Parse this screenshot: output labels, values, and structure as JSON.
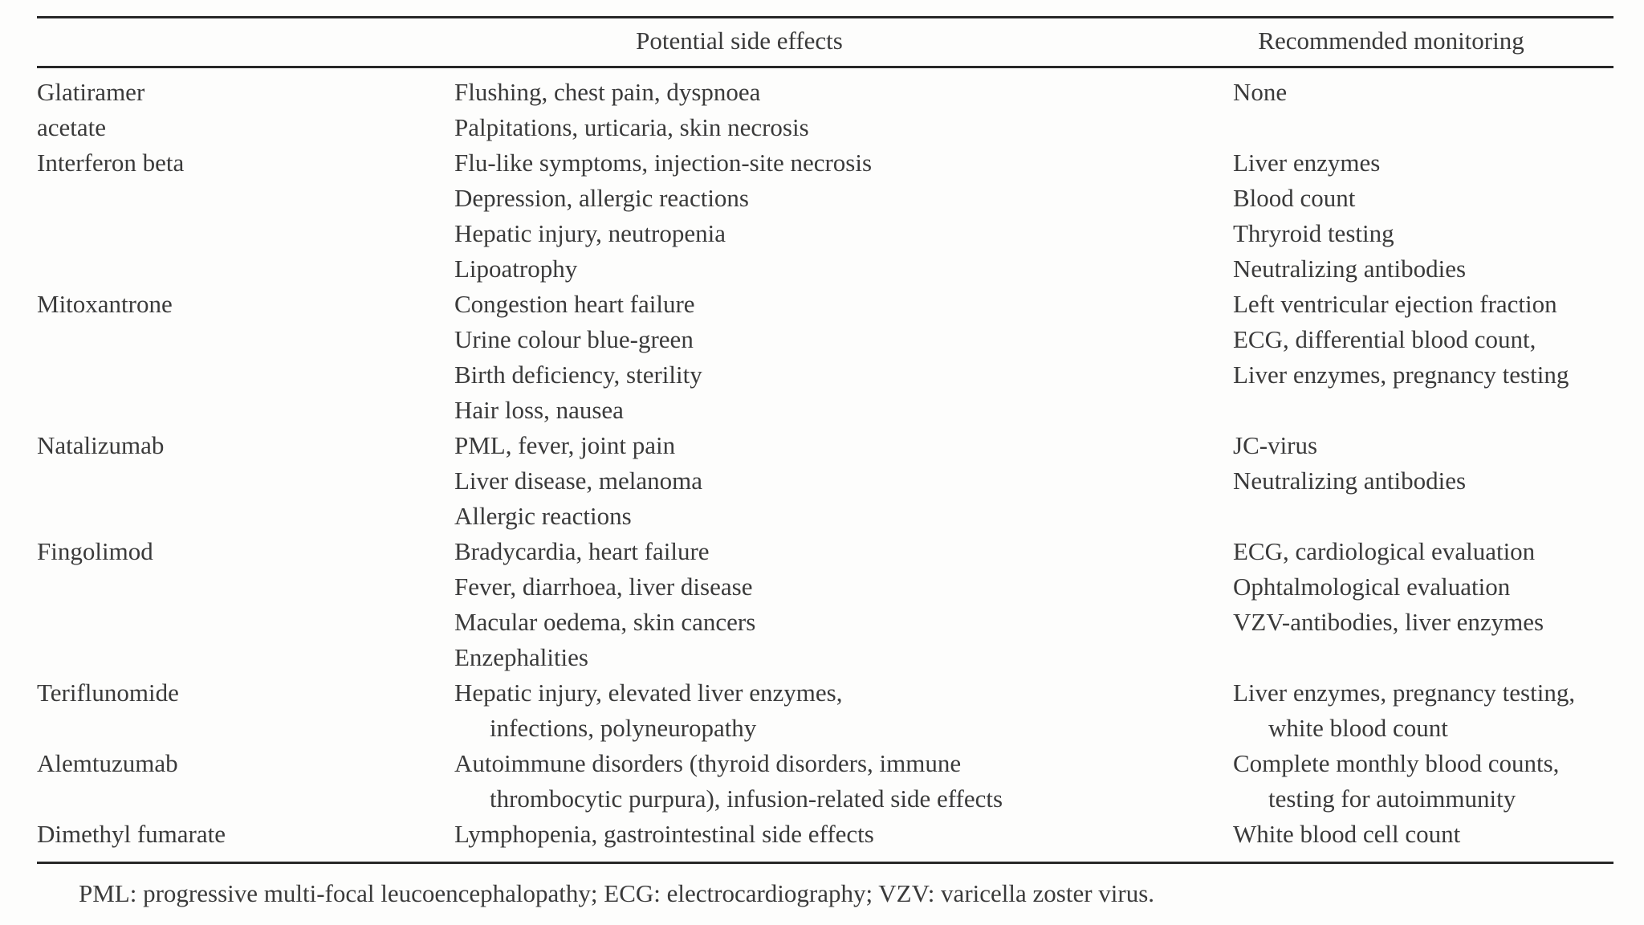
{
  "table": {
    "headers": {
      "drug": "",
      "side_effects": "Potential side effects",
      "monitoring": "Recommended monitoring"
    },
    "rows": [
      {
        "drug": [
          {
            "text": "Glatiramer",
            "indent": false
          },
          {
            "text": "acetate",
            "indent": false
          }
        ],
        "side_effects": [
          {
            "text": "Flushing, chest pain, dyspnoea",
            "indent": false
          },
          {
            "text": "Palpitations, urticaria, skin necrosis",
            "indent": false
          }
        ],
        "monitoring": [
          {
            "text": "None",
            "indent": false
          }
        ]
      },
      {
        "drug": [
          {
            "text": "Interferon beta",
            "indent": false
          }
        ],
        "side_effects": [
          {
            "text": "Flu-like symptoms, injection-site necrosis",
            "indent": false
          },
          {
            "text": "Depression, allergic reactions",
            "indent": false
          },
          {
            "text": "Hepatic injury, neutropenia",
            "indent": false
          },
          {
            "text": "Lipoatrophy",
            "indent": false
          }
        ],
        "monitoring": [
          {
            "text": "Liver enzymes",
            "indent": false
          },
          {
            "text": "Blood count",
            "indent": false
          },
          {
            "text": "Thryroid testing",
            "indent": false
          },
          {
            "text": "Neutralizing antibodies",
            "indent": false
          }
        ]
      },
      {
        "drug": [
          {
            "text": "Mitoxantrone",
            "indent": false
          }
        ],
        "side_effects": [
          {
            "text": "Congestion heart failure",
            "indent": false
          },
          {
            "text": "Urine colour blue-green",
            "indent": false
          },
          {
            "text": "Birth deficiency, sterility",
            "indent": false
          },
          {
            "text": "Hair loss, nausea",
            "indent": false
          }
        ],
        "monitoring": [
          {
            "text": "Left ventricular ejection fraction",
            "indent": false
          },
          {
            "text": "ECG, differential blood count,",
            "indent": false
          },
          {
            "text": "Liver enzymes, pregnancy testing",
            "indent": false
          }
        ]
      },
      {
        "drug": [
          {
            "text": "Natalizumab",
            "indent": false
          }
        ],
        "side_effects": [
          {
            "text": "PML, fever, joint pain",
            "indent": false
          },
          {
            "text": "Liver disease, melanoma",
            "indent": false
          },
          {
            "text": "Allergic reactions",
            "indent": false
          }
        ],
        "monitoring": [
          {
            "text": "JC-virus",
            "indent": false
          },
          {
            "text": "Neutralizing antibodies",
            "indent": false
          }
        ]
      },
      {
        "drug": [
          {
            "text": "Fingolimod",
            "indent": false
          }
        ],
        "side_effects": [
          {
            "text": "Bradycardia, heart failure",
            "indent": false
          },
          {
            "text": "Fever, diarrhoea, liver disease",
            "indent": false
          },
          {
            "text": "Macular oedema, skin cancers",
            "indent": false
          },
          {
            "text": "Enzephalities",
            "indent": false
          }
        ],
        "monitoring": [
          {
            "text": "ECG, cardiological evaluation",
            "indent": false
          },
          {
            "text": "Ophtalmological evaluation",
            "indent": false
          },
          {
            "text": "VZV-antibodies, liver enzymes",
            "indent": false
          }
        ]
      },
      {
        "drug": [
          {
            "text": "Teriflunomide",
            "indent": false
          }
        ],
        "side_effects": [
          {
            "text": "Hepatic injury, elevated liver enzymes,",
            "indent": false
          },
          {
            "text": "infections, polyneuropathy",
            "indent": true
          }
        ],
        "monitoring": [
          {
            "text": "Liver enzymes, pregnancy testing,",
            "indent": false
          },
          {
            "text": "white blood count",
            "indent": true
          }
        ]
      },
      {
        "drug": [
          {
            "text": "Alemtuzumab",
            "indent": false
          }
        ],
        "side_effects": [
          {
            "text": "Autoimmune disorders (thyroid disorders, immune",
            "indent": false
          },
          {
            "text": "thrombocytic purpura), infusion-related side effects",
            "indent": true
          }
        ],
        "monitoring": [
          {
            "text": "Complete monthly blood counts,",
            "indent": false
          },
          {
            "text": "testing for autoimmunity",
            "indent": true
          }
        ]
      },
      {
        "drug": [
          {
            "text": "Dimethyl fumarate",
            "indent": false
          }
        ],
        "side_effects": [
          {
            "text": "Lymphopenia, gastrointestinal side effects",
            "indent": false
          }
        ],
        "monitoring": [
          {
            "text": "White blood cell count",
            "indent": false
          }
        ]
      }
    ],
    "footnote": "PML: progressive multi-focal leucoencephalopathy; ECG: electrocardiography; VZV: varicella zoster virus."
  },
  "colors": {
    "rule": "#282828",
    "text": "#3a3a3a",
    "background": "#fdfdfc"
  }
}
